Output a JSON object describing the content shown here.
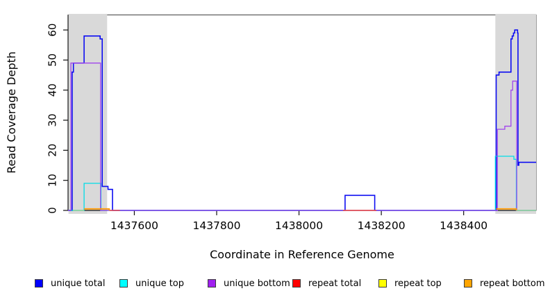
{
  "chart_data": {
    "type": "line",
    "subtype": "step-coverage",
    "title": "",
    "xlabel": "Coordinate in Reference Genome",
    "ylabel": "Read Coverage Depth",
    "xlim": [
      1437439,
      1438576
    ],
    "ylim": [
      0,
      65
    ],
    "xticks": [
      1437600,
      1437800,
      1438000,
      1438200,
      1438400
    ],
    "yticks": [
      0,
      10,
      20,
      30,
      40,
      50,
      60
    ],
    "grid": false,
    "legend_position": "bottom",
    "background_color": "#ffffff",
    "shaded_region_color": "#d9d9d9",
    "shaded_regions": [
      {
        "x0": 1437440,
        "x1": 1437534
      },
      {
        "x0": 1438477,
        "x1": 1438576
      }
    ],
    "series": [
      {
        "name": "unique total",
        "color": "#0000ff",
        "draw_color": "#0d0df2",
        "width": 1.6,
        "paths": [
          [
            [
              1437439,
              0
            ],
            [
              1437449,
              46
            ],
            [
              1437452,
              49
            ],
            [
              1437478,
              58
            ],
            [
              1437517,
              57
            ],
            [
              1437522,
              8
            ],
            [
              1437536,
              7
            ],
            [
              1437547,
              0
            ],
            [
              1438112,
              5
            ],
            [
              1438184,
              0
            ],
            [
              1438479,
              45
            ],
            [
              1438486,
              46
            ],
            [
              1438515,
              57
            ],
            [
              1438518,
              58
            ],
            [
              1438521,
              59
            ],
            [
              1438524,
              60
            ],
            [
              1438531,
              59
            ],
            [
              1438532,
              15
            ],
            [
              1438534,
              16
            ],
            [
              1438576,
              16
            ]
          ]
        ]
      },
      {
        "name": "unique top",
        "color": "#00ffff",
        "draw_color": "#00dde8",
        "width": 1.3,
        "paths": [
          [
            [
              1437439,
              0
            ],
            [
              1437478,
              9
            ],
            [
              1437519,
              0
            ],
            [
              1438477,
              18
            ],
            [
              1438522,
              17
            ],
            [
              1438528,
              0
            ],
            [
              1438576,
              0
            ]
          ]
        ]
      },
      {
        "name": "unique bottom",
        "color": "#a020f0",
        "draw_color": "#a044ec",
        "width": 1.3,
        "paths": [
          [
            [
              1437439,
              0
            ],
            [
              1437446,
              49
            ],
            [
              1437518,
              0
            ],
            [
              1438482,
              27
            ],
            [
              1438500,
              28
            ],
            [
              1438515,
              40
            ],
            [
              1438519,
              43
            ],
            [
              1438529,
              0
            ],
            [
              1438576,
              0
            ]
          ]
        ]
      },
      {
        "name": "repeat total",
        "color": "#ff0000",
        "draw_color": "#f94545",
        "width": 1.4,
        "paths": [
          [
            [
              1437540,
              0
            ],
            [
              1437565,
              0
            ]
          ],
          [
            [
              1438107,
              0
            ],
            [
              1438188,
              0
            ]
          ]
        ]
      },
      {
        "name": "repeat top",
        "color": "#ffff00",
        "draw_color": "#96dca0",
        "width": 1.4,
        "paths": [
          [
            [
              1437451,
              0
            ],
            [
              1437478,
              0
            ]
          ],
          [
            [
              1438529,
              0
            ],
            [
              1438576,
              0
            ]
          ]
        ]
      },
      {
        "name": "repeat bottom",
        "color": "#ffa500",
        "draw_color": "#ff9900",
        "width": 1.8,
        "paths": [
          [
            [
              1437478,
              0.5
            ],
            [
              1437539,
              0
            ]
          ],
          [
            [
              1438479,
              0.5
            ],
            [
              1438528,
              0
            ]
          ]
        ]
      }
    ]
  }
}
